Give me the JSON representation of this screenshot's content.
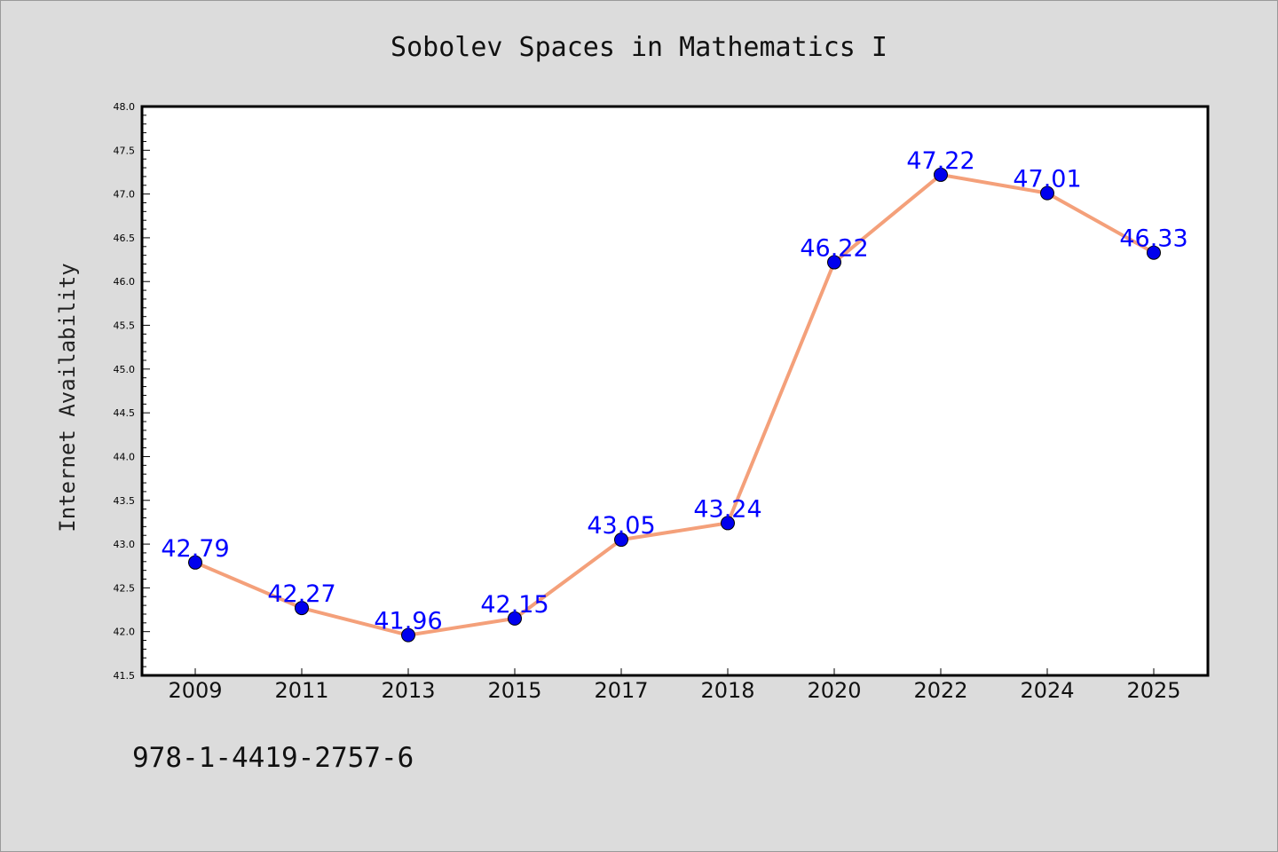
{
  "chart_data": {
    "type": "line",
    "title": "Sobolev Spaces in Mathematics I",
    "xlabel": "",
    "ylabel": "Internet Availability",
    "categories": [
      "2009",
      "2011",
      "2013",
      "2015",
      "2017",
      "2018",
      "2020",
      "2022",
      "2024",
      "2025"
    ],
    "series": [
      {
        "values": [
          42.79,
          42.27,
          41.96,
          42.15,
          43.05,
          43.24,
          46.22,
          47.22,
          47.01,
          46.33
        ],
        "labels": [
          "42.79",
          "42.27",
          "41.96",
          "42.15",
          "43.05",
          "43.24",
          "46.22",
          "47.22",
          "47.01",
          "46.33"
        ],
        "line_color": "#f4a07a",
        "marker_color": "#0000ee",
        "label_color": "#0000ff"
      }
    ],
    "ylim": [
      41.5,
      48.0
    ],
    "yticks": [
      "41.5",
      "42.0",
      "42.5",
      "43.0",
      "43.5",
      "44.0",
      "44.5",
      "45.0",
      "45.5",
      "46.0",
      "46.5",
      "47.0",
      "47.5",
      "48.0"
    ],
    "grid": false,
    "legend": "none"
  },
  "footer_text": "978-1-4419-2757-6"
}
